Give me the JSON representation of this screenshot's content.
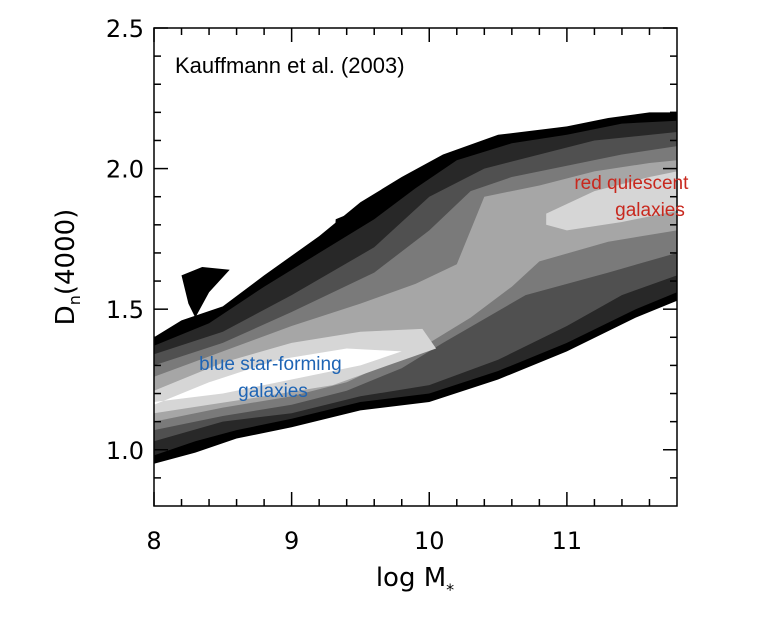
{
  "chart_data": {
    "type": "contour",
    "xlabel_main": "log M",
    "xlabel_sub": "*",
    "ylabel_main": "D",
    "ylabel_sub": "n",
    "ylabel_rest": "(4000)",
    "xlim": [
      8,
      11.8
    ],
    "ylim": [
      0.8,
      2.5
    ],
    "x_ticks": [
      8,
      9,
      10,
      11
    ],
    "x_tick_labels": [
      "8",
      "9",
      "10",
      "11"
    ],
    "y_ticks": [
      1.0,
      1.5,
      2.0,
      2.5
    ],
    "y_tick_labels": [
      "1.0",
      "1.5",
      "2.0",
      "2.5"
    ],
    "grid": false,
    "levels": [
      {
        "fill": "#000000",
        "polygon": [
          [
            8.0,
            1.4
          ],
          [
            8.2,
            1.46
          ],
          [
            8.5,
            1.51
          ],
          [
            8.8,
            1.62
          ],
          [
            9.2,
            1.76
          ],
          [
            9.5,
            1.88
          ],
          [
            9.8,
            1.97
          ],
          [
            10.1,
            2.05
          ],
          [
            10.5,
            2.12
          ],
          [
            11.0,
            2.15
          ],
          [
            11.3,
            2.18
          ],
          [
            11.6,
            2.2
          ],
          [
            11.8,
            2.2
          ],
          [
            11.8,
            1.53
          ],
          [
            11.5,
            1.47
          ],
          [
            11.0,
            1.35
          ],
          [
            10.5,
            1.25
          ],
          [
            10.0,
            1.17
          ],
          [
            9.5,
            1.14
          ],
          [
            9.0,
            1.08
          ],
          [
            8.6,
            1.04
          ],
          [
            8.3,
            0.99
          ],
          [
            8.0,
            0.95
          ]
        ]
      },
      {
        "fill": "#000000",
        "polygon": [
          [
            8.2,
            1.62
          ],
          [
            8.35,
            1.65
          ],
          [
            8.55,
            1.64
          ],
          [
            8.4,
            1.56
          ],
          [
            8.3,
            1.47
          ],
          [
            8.25,
            1.52
          ]
        ]
      },
      {
        "fill": "#000000",
        "polygon": [
          [
            9.3,
            1.65
          ],
          [
            9.32,
            1.82
          ],
          [
            9.52,
            1.86
          ],
          [
            9.6,
            1.7
          ],
          [
            9.5,
            1.64
          ]
        ]
      },
      {
        "fill": "#282828",
        "polygon": [
          [
            8.0,
            1.37
          ],
          [
            8.4,
            1.45
          ],
          [
            8.8,
            1.58
          ],
          [
            9.2,
            1.7
          ],
          [
            9.6,
            1.82
          ],
          [
            9.9,
            1.93
          ],
          [
            10.2,
            2.03
          ],
          [
            10.6,
            2.09
          ],
          [
            11.0,
            2.12
          ],
          [
            11.4,
            2.16
          ],
          [
            11.8,
            2.17
          ],
          [
            11.8,
            1.56
          ],
          [
            11.5,
            1.5
          ],
          [
            11.0,
            1.38
          ],
          [
            10.5,
            1.28
          ],
          [
            10.0,
            1.2
          ],
          [
            9.5,
            1.17
          ],
          [
            9.0,
            1.11
          ],
          [
            8.6,
            1.07
          ],
          [
            8.3,
            1.03
          ],
          [
            8.0,
            0.98
          ]
        ]
      },
      {
        "fill": "#505050",
        "polygon": [
          [
            8.0,
            1.34
          ],
          [
            8.5,
            1.42
          ],
          [
            9.0,
            1.55
          ],
          [
            9.6,
            1.72
          ],
          [
            10.0,
            1.9
          ],
          [
            10.4,
            2.0
          ],
          [
            10.8,
            2.05
          ],
          [
            11.2,
            2.1
          ],
          [
            11.8,
            2.13
          ],
          [
            11.8,
            1.62
          ],
          [
            11.4,
            1.55
          ],
          [
            11.0,
            1.44
          ],
          [
            10.5,
            1.32
          ],
          [
            10.0,
            1.23
          ],
          [
            9.5,
            1.19
          ],
          [
            9.0,
            1.13
          ],
          [
            8.5,
            1.1
          ],
          [
            8.0,
            1.03
          ]
        ]
      },
      {
        "fill": "#7a7a7a",
        "polygon": [
          [
            8.0,
            1.3
          ],
          [
            8.5,
            1.38
          ],
          [
            9.0,
            1.49
          ],
          [
            9.6,
            1.63
          ],
          [
            10.0,
            1.78
          ],
          [
            10.3,
            1.92
          ],
          [
            10.6,
            1.97
          ],
          [
            11.0,
            2.01
          ],
          [
            11.4,
            2.05
          ],
          [
            11.8,
            2.08
          ],
          [
            11.8,
            1.7
          ],
          [
            11.3,
            1.63
          ],
          [
            10.7,
            1.55
          ],
          [
            10.1,
            1.38
          ],
          [
            9.8,
            1.29
          ],
          [
            9.4,
            1.21
          ],
          [
            9.0,
            1.16
          ],
          [
            8.5,
            1.12
          ],
          [
            8.0,
            1.07
          ]
        ]
      },
      {
        "fill": "#a6a6a6",
        "polygon": [
          [
            8.0,
            1.26
          ],
          [
            8.5,
            1.35
          ],
          [
            9.0,
            1.44
          ],
          [
            9.5,
            1.52
          ],
          [
            9.9,
            1.59
          ],
          [
            10.2,
            1.66
          ],
          [
            10.4,
            1.9
          ],
          [
            10.6,
            1.92
          ],
          [
            10.8,
            1.94
          ],
          [
            11.2,
            1.99
          ],
          [
            11.6,
            2.02
          ],
          [
            11.8,
            2.03
          ],
          [
            11.8,
            1.78
          ],
          [
            11.3,
            1.74
          ],
          [
            10.8,
            1.67
          ],
          [
            10.6,
            1.58
          ],
          [
            10.3,
            1.47
          ],
          [
            10.0,
            1.38
          ],
          [
            9.7,
            1.31
          ],
          [
            9.4,
            1.24
          ],
          [
            9.0,
            1.19
          ],
          [
            8.5,
            1.15
          ],
          [
            8.0,
            1.1
          ]
        ]
      },
      {
        "fill": "#d6d6d6",
        "polygon": [
          [
            8.0,
            1.21
          ],
          [
            8.5,
            1.31
          ],
          [
            9.0,
            1.38
          ],
          [
            9.5,
            1.42
          ],
          [
            9.95,
            1.43
          ],
          [
            10.05,
            1.36
          ],
          [
            9.7,
            1.3
          ],
          [
            9.3,
            1.23
          ],
          [
            8.8,
            1.19
          ],
          [
            8.4,
            1.16
          ],
          [
            8.0,
            1.13
          ]
        ]
      },
      {
        "fill": "#d6d6d6",
        "polygon": [
          [
            10.85,
            1.84
          ],
          [
            11.2,
            1.92
          ],
          [
            11.6,
            1.97
          ],
          [
            11.8,
            1.99
          ],
          [
            11.8,
            1.85
          ],
          [
            11.4,
            1.81
          ],
          [
            11.0,
            1.78
          ],
          [
            10.85,
            1.8
          ]
        ]
      },
      {
        "fill": "#ffffff",
        "polygon": [
          [
            8.0,
            1.16
          ],
          [
            8.4,
            1.24
          ],
          [
            8.9,
            1.32
          ],
          [
            9.4,
            1.36
          ],
          [
            9.8,
            1.35
          ],
          [
            9.5,
            1.3
          ],
          [
            9.0,
            1.25
          ],
          [
            8.5,
            1.2
          ],
          [
            8.0,
            1.17
          ]
        ]
      }
    ],
    "annotations": [
      {
        "id": "citation",
        "lines": [
          "Kauffmann et al. (2003)"
        ],
        "color": "#000000"
      },
      {
        "id": "blue",
        "lines": [
          "blue star-forming",
          "galaxies"
        ],
        "color": "#1e64b4"
      },
      {
        "id": "red",
        "lines": [
          "red quiescent",
          "galaxies"
        ],
        "color": "#c8281e"
      }
    ]
  }
}
